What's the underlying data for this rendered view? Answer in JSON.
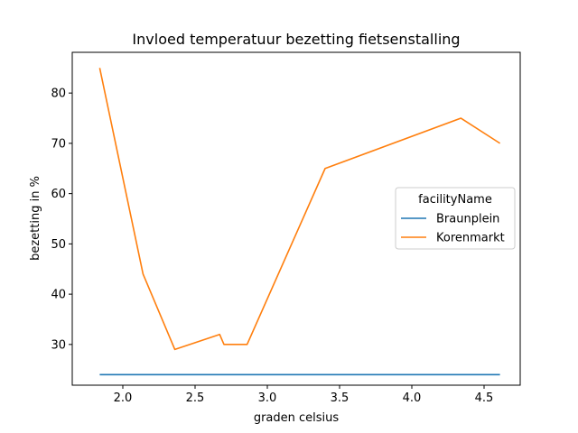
{
  "chart_data": {
    "type": "line",
    "title": "Invloed temperatuur bezetting fietsenstalling",
    "xlabel": "graden celsius",
    "ylabel": "bezetting in %",
    "xlim": [
      1.65,
      4.75
    ],
    "ylim": [
      21.9,
      88.1
    ],
    "xticks": [
      2.0,
      2.5,
      3.0,
      3.5,
      4.0,
      4.5
    ],
    "xtick_labels": [
      "2.0",
      "2.5",
      "3.0",
      "3.5",
      "4.0",
      "4.5"
    ],
    "yticks": [
      30,
      40,
      50,
      60,
      70,
      80
    ],
    "ytick_labels": [
      "30",
      "40",
      "50",
      "60",
      "70",
      "80"
    ],
    "grid": false,
    "legend": {
      "title": "facilityName",
      "placement": "center-right"
    },
    "series": [
      {
        "name": "Braunplein",
        "color": "#1f77b4",
        "x": [
          1.84,
          4.61
        ],
        "y": [
          24,
          24
        ]
      },
      {
        "name": "Korenmarkt",
        "color": "#ff7f0e",
        "x": [
          1.84,
          2.14,
          2.36,
          2.67,
          2.7,
          2.86,
          3.4,
          4.34,
          4.61
        ],
        "y": [
          85,
          44,
          29,
          32,
          30,
          30,
          65,
          75,
          70
        ]
      }
    ]
  }
}
